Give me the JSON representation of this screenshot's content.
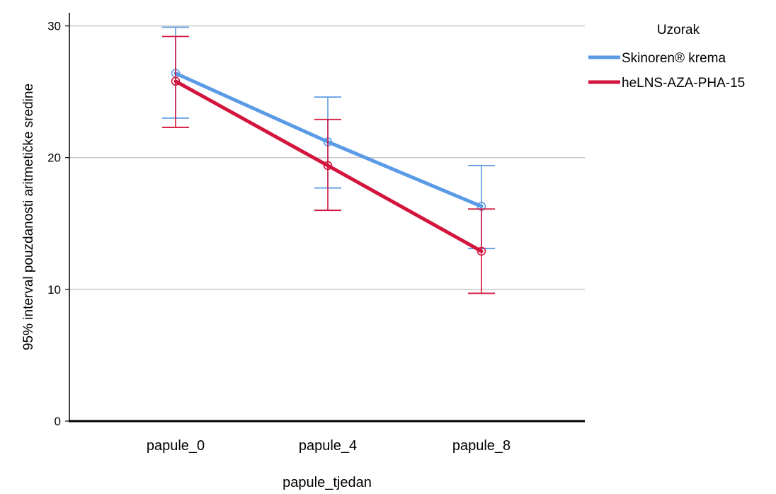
{
  "chart_data": {
    "type": "line",
    "title": "",
    "xlabel": "papule_tjedan",
    "ylabel": "95% interval pouzdanosti aritmetičke sredine",
    "categories": [
      "papule_0",
      "papule_4",
      "papule_8"
    ],
    "ylim": [
      0,
      31
    ],
    "yticks": [
      0,
      10,
      20,
      30
    ],
    "grid": true,
    "legend": {
      "title": "Uzorak",
      "placement": "top-right"
    },
    "series": [
      {
        "name": "Skinoren® krema",
        "color": "#5b9be5",
        "values": [
          26.4,
          21.2,
          16.3
        ],
        "ci_lower": [
          23.0,
          17.7,
          13.1
        ],
        "ci_upper": [
          29.9,
          24.6,
          19.4
        ]
      },
      {
        "name": "heLNS-AZA-PHA-15",
        "color": "#d3143c",
        "values": [
          25.8,
          19.4,
          12.9
        ],
        "ci_lower": [
          22.3,
          16.0,
          9.7
        ],
        "ci_upper": [
          29.2,
          22.9,
          16.1
        ]
      }
    ]
  }
}
